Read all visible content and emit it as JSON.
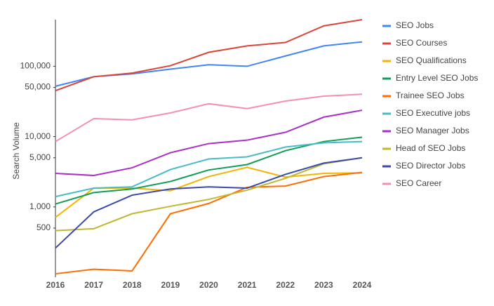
{
  "chart_data": {
    "type": "line",
    "categories": [
      "2016",
      "2017",
      "2018",
      "2019",
      "2020",
      "2021",
      "2022",
      "2023",
      "2024"
    ],
    "y_label": "Search Volume",
    "log_scale": true,
    "grid": false,
    "legend": "right",
    "ylim": [
      100,
      460000
    ],
    "yticks": [
      {
        "value": 100000,
        "label": "100,000"
      },
      {
        "value": 50000,
        "label": "50,000"
      },
      {
        "value": 10000,
        "label": "10,000"
      },
      {
        "value": 5000,
        "label": "5,000"
      },
      {
        "value": 1000,
        "label": "1,000"
      },
      500
    ],
    "series": [
      {
        "name": "SEO Jobs",
        "color": "#4285f4",
        "values": [
          52000,
          71000,
          78000,
          91000,
          105000,
          100000,
          140000,
          195000,
          222000
        ]
      },
      {
        "name": "SEO Courses",
        "color": "#db4437",
        "values": [
          45000,
          71000,
          80000,
          102000,
          158000,
          195000,
          218000,
          375000,
          460000
        ]
      },
      {
        "name": "SEO Qualifications",
        "color": "#f4b400",
        "values": [
          710,
          1850,
          1850,
          1700,
          2700,
          3650,
          2650,
          3000,
          3050
        ]
      },
      {
        "name": "Entry Level SEO Jobs",
        "color": "#0f9d58",
        "values": [
          1100,
          1600,
          1800,
          2300,
          3350,
          4000,
          6300,
          8500,
          9800
        ]
      },
      {
        "name": "Trainee SEO Jobs",
        "color": "#ff6d01",
        "values": [
          112,
          130,
          123,
          800,
          1120,
          1900,
          1980,
          2700,
          3100
        ]
      },
      {
        "name": "SEO Executive jobs",
        "color": "#46bdc6",
        "values": [
          1400,
          1850,
          1930,
          3400,
          4800,
          5150,
          7100,
          8150,
          8500
        ]
      },
      {
        "name": "SEO Manager Jobs",
        "color": "#ab30c4",
        "values": [
          3000,
          2800,
          3600,
          5900,
          7950,
          8900,
          11500,
          18900,
          23700
        ]
      },
      {
        "name": "Head of SEO Jobs",
        "color": "#c0b832",
        "values": [
          460,
          490,
          800,
          1020,
          1280,
          1730,
          2550,
          4100,
          5000
        ]
      },
      {
        "name": "SEO Director Jobs",
        "color": "#3949ab",
        "values": [
          260,
          850,
          1470,
          1800,
          1930,
          1850,
          2900,
          4200,
          5000
        ]
      },
      {
        "name": "SEO Career",
        "color": "#f48fb1",
        "values": [
          8500,
          18000,
          17300,
          21700,
          29300,
          25000,
          32000,
          37600,
          40000
        ]
      }
    ]
  }
}
